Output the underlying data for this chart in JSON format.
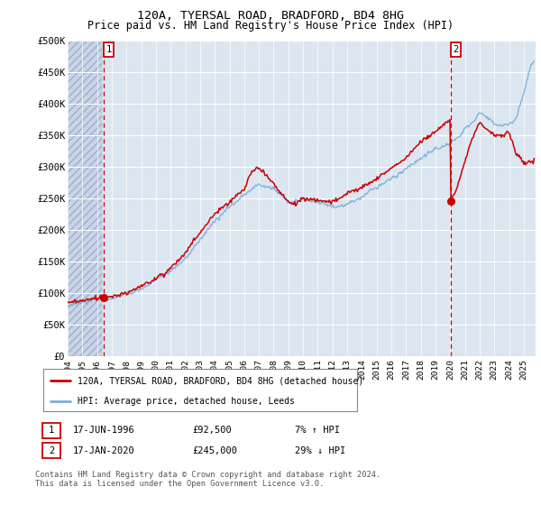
{
  "title1": "120A, TYERSAL ROAD, BRADFORD, BD4 8HG",
  "title2": "Price paid vs. HM Land Registry's House Price Index (HPI)",
  "ylabel_ticks": [
    "£0",
    "£50K",
    "£100K",
    "£150K",
    "£200K",
    "£250K",
    "£300K",
    "£350K",
    "£400K",
    "£450K",
    "£500K"
  ],
  "ylim": [
    0,
    500000
  ],
  "xlim_start": 1994.0,
  "xlim_end": 2025.8,
  "background_color": "#ffffff",
  "plot_bg_color": "#dce6f1",
  "grid_color": "#ffffff",
  "red_line_color": "#cc0000",
  "blue_line_color": "#7aadda",
  "marker1_x": 1996.46,
  "marker1_y": 92500,
  "marker2_x": 2020.04,
  "marker2_y": 245000,
  "hatch_end": 1996.3,
  "annotation1_label": "1",
  "annotation2_label": "2",
  "legend_entry1": "120A, TYERSAL ROAD, BRADFORD, BD4 8HG (detached house)",
  "legend_entry2": "HPI: Average price, detached house, Leeds",
  "table_row1_num": "1",
  "table_row1_date": "17-JUN-1996",
  "table_row1_price": "£92,500",
  "table_row1_hpi": "7% ↑ HPI",
  "table_row2_num": "2",
  "table_row2_date": "17-JAN-2020",
  "table_row2_price": "£245,000",
  "table_row2_hpi": "29% ↓ HPI",
  "footer": "Contains HM Land Registry data © Crown copyright and database right 2024.\nThis data is licensed under the Open Government Licence v3.0."
}
